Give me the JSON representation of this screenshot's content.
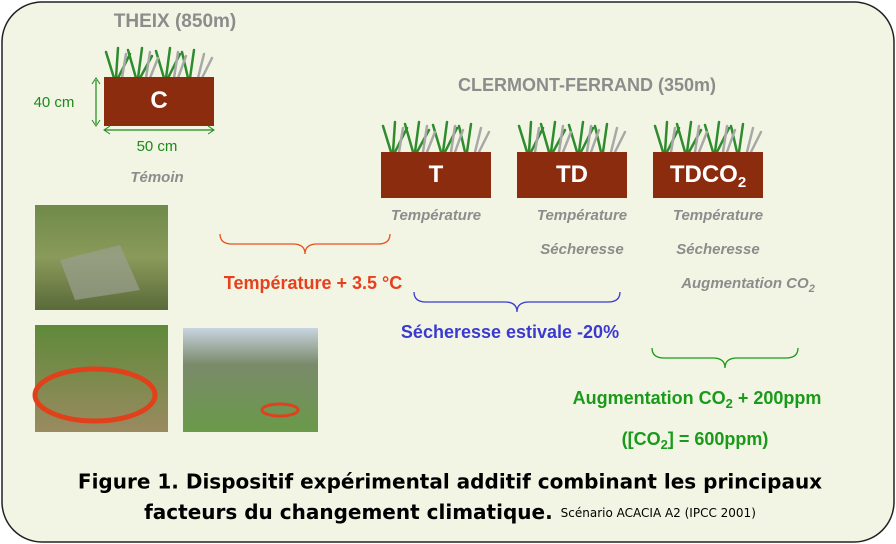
{
  "sites": {
    "theix": "THEIX (850m)",
    "clermont": "CLERMONT-FERRAND (350m)"
  },
  "dimensions": {
    "height": "40 cm",
    "width": "50 cm"
  },
  "boxes": [
    {
      "label": [
        "C"
      ],
      "factors": [
        [
          "Témoin"
        ]
      ]
    },
    {
      "label": [
        "T"
      ],
      "factors": [
        [
          "Température"
        ]
      ]
    },
    {
      "label": [
        "TD"
      ],
      "factors": [
        [
          "Température"
        ],
        [
          "Sécheresse"
        ]
      ]
    },
    {
      "label": [
        "TDCO",
        "2"
      ],
      "factors": [
        [
          "Température"
        ],
        [
          "Sécheresse"
        ],
        [
          "Augmentation CO",
          "2"
        ]
      ]
    }
  ],
  "effects": {
    "temperature": [
      "Température + 3.5 °C"
    ],
    "drought": [
      "Sécheresse estivale -20%"
    ],
    "co2": [
      "Augmentation CO",
      "2",
      " + 200ppm"
    ],
    "co2_level": [
      "([CO",
      "2",
      "] = 600ppm)"
    ]
  },
  "caption": {
    "line1": "Figure 1. Dispositif expérimental additif combinant les principaux",
    "line2": "facteurs du changement climatique.",
    "note": "Scénario ACACIA A2 (IPCC 2001)"
  }
}
